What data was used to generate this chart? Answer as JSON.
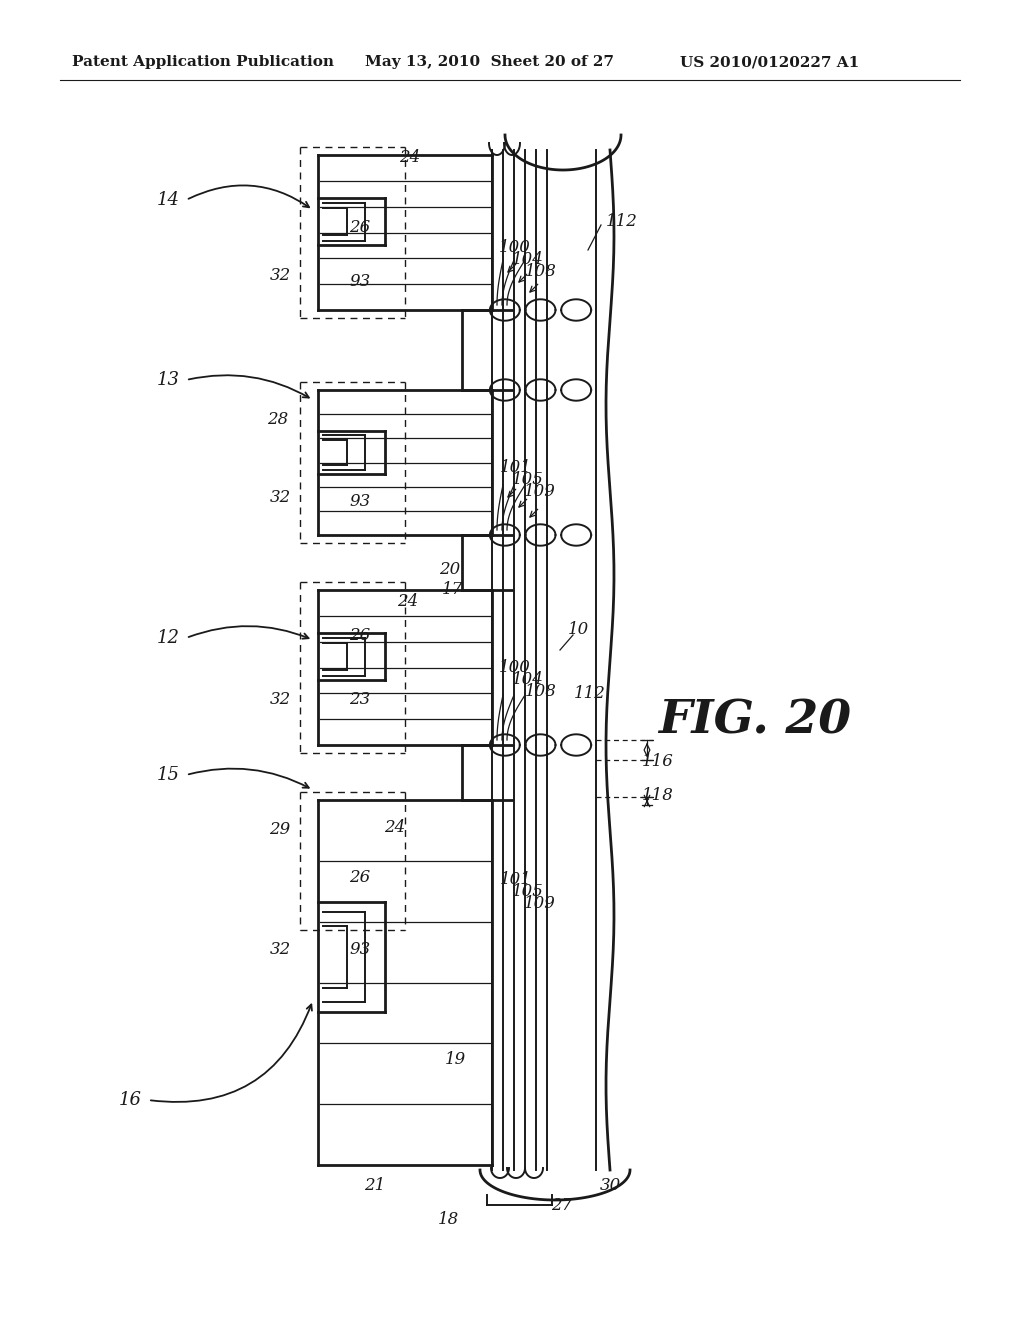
{
  "bg_color": "#ffffff",
  "line_color": "#1a1a1a",
  "header_left": "Patent Application Publication",
  "header_mid": "May 13, 2010  Sheet 20 of 27",
  "header_right": "US 2010/0120227 A1",
  "fig_label": "FIG. 20",
  "header_fontsize": 11,
  "label_fontsize": 12,
  "fig_fontsize": 34
}
